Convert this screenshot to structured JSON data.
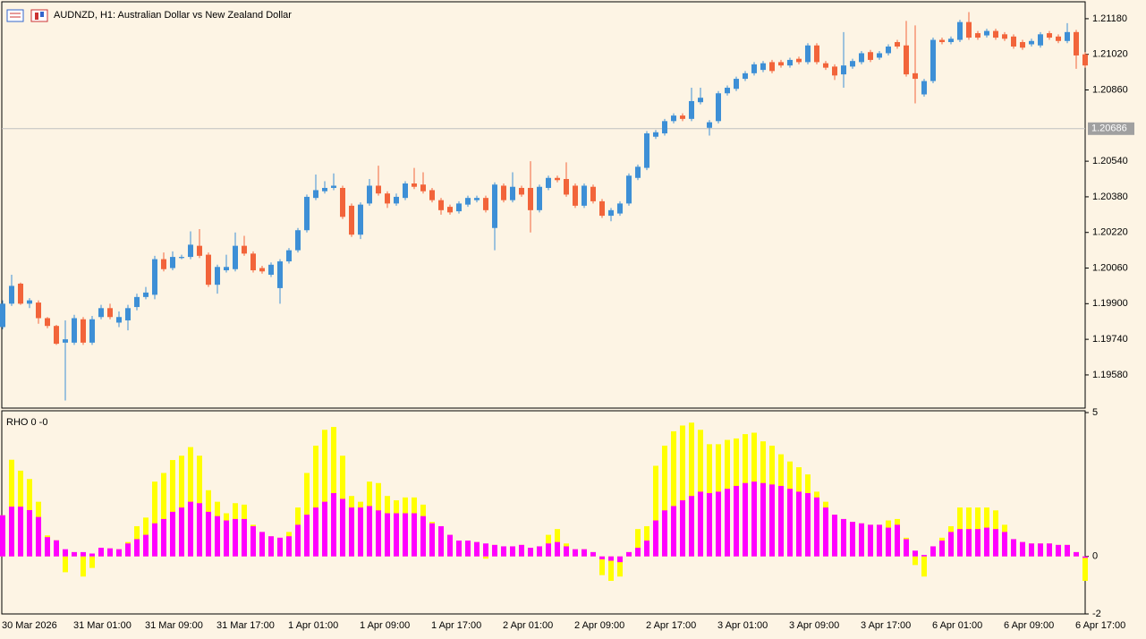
{
  "chart_data": [
    {
      "type": "candlestick",
      "title": "AUDNZD, H1:  Australian Dollar vs New Zealand Dollar",
      "up_color": "#3d8fd6",
      "down_color": "#f2643a",
      "categories": [
        "30 Mar 2026",
        null,
        null,
        null,
        null,
        null,
        null,
        null,
        "31 Mar 01:00",
        null,
        null,
        null,
        null,
        null,
        null,
        null,
        "31 Mar 09:00",
        null,
        null,
        null,
        null,
        null,
        null,
        null,
        "31 Mar 17:00",
        null,
        null,
        null,
        null,
        null,
        null,
        null,
        "1 Apr 01:00",
        null,
        null,
        null,
        null,
        null,
        null,
        null,
        "1 Apr 09:00",
        null,
        null,
        null,
        null,
        null,
        null,
        null,
        "1 Apr 17:00",
        null,
        null,
        null,
        null,
        null,
        null,
        null,
        "2 Apr 01:00",
        null,
        null,
        null,
        null,
        null,
        null,
        null,
        "2 Apr 09:00",
        null,
        null,
        null,
        null,
        null,
        null,
        null,
        "2 Apr 17:00",
        null,
        null,
        null,
        null,
        null,
        null,
        null,
        "3 Apr 01:00",
        null,
        null,
        null,
        null,
        null,
        null,
        null,
        "3 Apr 09:00",
        null,
        null,
        null,
        null,
        null,
        null,
        null,
        "3 Apr 17:00",
        null,
        null,
        null,
        null,
        null,
        null,
        null,
        "6 Apr 01:00",
        null,
        null,
        null,
        null,
        null,
        null,
        null,
        "6 Apr 09:00",
        null,
        null,
        null,
        null,
        null,
        null,
        null,
        "6 Apr 17:00",
        null
      ],
      "open": [
        1.19795,
        1.199,
        1.1999,
        1.199,
        1.19905,
        1.19835,
        1.198,
        1.19725,
        1.19725,
        1.1983,
        1.19725,
        1.1984,
        1.1988,
        1.19815,
        1.19825,
        1.19885,
        1.1993,
        1.1994,
        1.201,
        1.2006,
        1.20105,
        1.2011,
        1.2016,
        1.2012,
        1.19985,
        1.2005,
        1.20055,
        1.2016,
        1.20125,
        1.2006,
        1.2003,
        1.1997,
        1.2009,
        1.2014,
        1.2023,
        1.20375,
        1.20405,
        1.2042,
        1.2042,
        1.2034,
        1.2021,
        1.2035,
        1.2043,
        1.20395,
        1.2035,
        1.20375,
        1.2044,
        1.20435,
        1.2041,
        1.20365,
        1.20335,
        1.20315,
        1.20345,
        1.20365,
        1.20375,
        1.2024,
        1.2043,
        1.20365,
        1.2042,
        1.2042,
        1.2032,
        1.2042,
        1.20465,
        1.2046,
        1.2043,
        1.2034,
        1.20425,
        1.2036,
        1.20295,
        1.20305,
        1.2035,
        1.20465,
        1.2051,
        1.2065,
        1.20665,
        1.2072,
        1.20745,
        1.2073,
        1.20805,
        1.2069,
        1.2072,
        1.20845,
        1.20865,
        1.2091,
        1.20935,
        1.2095,
        1.20985,
        1.20985,
        1.2097,
        1.21,
        1.20985,
        1.2106,
        1.2098,
        1.20965,
        1.2093,
        1.20965,
        1.20985,
        1.2103,
        1.21005,
        1.21025,
        1.21075,
        1.2106,
        1.20935,
        1.2084,
        1.209,
        1.21085,
        1.21075,
        1.21085,
        1.21165,
        1.21115,
        1.21105,
        1.21125,
        1.2111,
        1.211,
        1.21075,
        1.21065,
        1.2106,
        1.21115,
        1.211,
        1.2108,
        1.2112,
        1.2102
      ],
      "high": [
        1.19915,
        1.2003,
        1.19995,
        1.19925,
        1.19915,
        1.1984,
        1.19805,
        1.19825,
        1.1985,
        1.1984,
        1.19845,
        1.19895,
        1.199,
        1.19865,
        1.19895,
        1.19945,
        1.19975,
        1.20115,
        1.2013,
        1.20135,
        1.2012,
        1.20225,
        1.20235,
        1.2013,
        1.20075,
        1.2012,
        1.2022,
        1.20205,
        1.20135,
        1.2007,
        1.20085,
        1.201,
        1.2015,
        1.2024,
        1.2039,
        1.2048,
        1.2045,
        1.20485,
        1.2043,
        1.2035,
        1.20355,
        1.2046,
        1.2052,
        1.20405,
        1.20395,
        1.2045,
        1.2051,
        1.2049,
        1.2042,
        1.20375,
        1.20345,
        1.2036,
        1.20385,
        1.20385,
        1.20385,
        1.20445,
        1.2044,
        1.2049,
        1.2043,
        1.2054,
        1.20435,
        1.20475,
        1.20475,
        1.20535,
        1.2044,
        1.2044,
        1.20435,
        1.2037,
        1.2033,
        1.2036,
        1.20485,
        1.20525,
        1.20675,
        1.2068,
        1.2073,
        1.20755,
        1.20755,
        1.2087,
        1.2087,
        1.20725,
        1.20855,
        1.2088,
        1.2092,
        1.20945,
        1.20985,
        1.2099,
        1.20995,
        1.20995,
        1.21005,
        1.2101,
        1.2107,
        1.2107,
        1.2099,
        1.20975,
        1.2112,
        1.21,
        1.21035,
        1.2104,
        1.21035,
        1.21065,
        1.21085,
        1.2117,
        1.2115,
        1.2091,
        1.21095,
        1.21095,
        1.211,
        1.21175,
        1.2121,
        1.21125,
        1.21135,
        1.21135,
        1.2112,
        1.2111,
        1.21085,
        1.2109,
        1.2112,
        1.21125,
        1.2111,
        1.2116,
        1.2113,
        1.2103
      ],
      "low": [
        1.19785,
        1.1989,
        1.19895,
        1.1988,
        1.1981,
        1.1979,
        1.19715,
        1.19465,
        1.19715,
        1.19715,
        1.19715,
        1.1983,
        1.1983,
        1.19795,
        1.1978,
        1.1987,
        1.1992,
        1.1992,
        1.20045,
        1.2005,
        1.201,
        1.201,
        1.20105,
        1.19975,
        1.19945,
        1.2004,
        1.20045,
        1.20115,
        1.2004,
        1.20035,
        1.2002,
        1.199,
        1.2008,
        1.2013,
        1.2022,
        1.20365,
        1.20395,
        1.2041,
        1.2028,
        1.202,
        1.2019,
        1.2034,
        1.20385,
        1.2033,
        1.2034,
        1.20365,
        1.20415,
        1.20395,
        1.20355,
        1.203,
        1.203,
        1.20305,
        1.20335,
        1.20355,
        1.2031,
        1.2014,
        1.20355,
        1.20355,
        1.2038,
        1.2022,
        1.2031,
        1.2041,
        1.20445,
        1.2038,
        1.2033,
        1.2033,
        1.2035,
        1.20285,
        1.2027,
        1.20295,
        1.2034,
        1.20455,
        1.205,
        1.2064,
        1.20655,
        1.2071,
        1.2072,
        1.2072,
        1.20795,
        1.20655,
        1.2071,
        1.20835,
        1.20855,
        1.209,
        1.20925,
        1.2094,
        1.20935,
        1.2096,
        1.2096,
        1.20975,
        1.20975,
        1.20975,
        1.2095,
        1.20905,
        1.2087,
        1.20955,
        1.20975,
        1.20985,
        1.20995,
        1.21015,
        1.21045,
        1.2092,
        1.208,
        1.2083,
        1.2089,
        1.21065,
        1.21065,
        1.21075,
        1.21085,
        1.21085,
        1.21095,
        1.21085,
        1.2108,
        1.21045,
        1.2104,
        1.21055,
        1.2105,
        1.21085,
        1.2107,
        1.2107,
        1.20955,
        1.2096
      ],
      "close": [
        1.199,
        1.1998,
        1.199,
        1.19915,
        1.19835,
        1.198,
        1.1972,
        1.1974,
        1.19835,
        1.19725,
        1.1983,
        1.1988,
        1.1984,
        1.1984,
        1.1988,
        1.1993,
        1.1995,
        1.201,
        1.20055,
        1.2011,
        1.2011,
        1.20165,
        1.20115,
        1.19985,
        1.20065,
        1.20065,
        1.2016,
        1.20125,
        1.2005,
        1.20045,
        1.20075,
        1.2009,
        1.2014,
        1.2023,
        1.2038,
        1.2041,
        1.2042,
        1.2043,
        1.2029,
        1.2021,
        1.20345,
        1.2043,
        1.20395,
        1.2035,
        1.2038,
        1.2044,
        1.20425,
        1.20405,
        1.20365,
        1.2032,
        1.2031,
        1.2035,
        1.20375,
        1.20375,
        1.2032,
        1.20435,
        1.20365,
        1.20425,
        1.2039,
        1.2032,
        1.20425,
        1.20465,
        1.20455,
        1.2039,
        1.2034,
        1.2043,
        1.2036,
        1.20295,
        1.2032,
        1.2035,
        1.20475,
        1.20515,
        1.20665,
        1.2067,
        1.2072,
        1.20745,
        1.2073,
        1.2081,
        1.20825,
        1.20715,
        1.20845,
        1.2087,
        1.2091,
        1.20935,
        1.20975,
        1.2098,
        1.20945,
        1.2097,
        1.20995,
        1.20985,
        1.2106,
        1.20985,
        1.2096,
        1.20925,
        1.2097,
        1.2099,
        1.21025,
        1.20995,
        1.21025,
        1.21055,
        1.21055,
        1.2093,
        1.2091,
        1.209,
        1.21085,
        1.21075,
        1.2109,
        1.21165,
        1.21095,
        1.21095,
        1.21125,
        1.21095,
        1.2109,
        1.21055,
        1.2105,
        1.2108,
        1.2111,
        1.21095,
        1.2108,
        1.2112,
        1.21015,
        1.2097
      ],
      "price_line": 1.20686,
      "ylim": [
        1.19431,
        1.21256
      ],
      "yticks": [
        {
          "value": 1.2118,
          "label": "1.21180"
        },
        {
          "value": 1.2102,
          "label": "1.21020"
        },
        {
          "value": 1.2086,
          "label": "1.20860"
        },
        {
          "value": 1.2054,
          "label": "1.20540"
        },
        {
          "value": 1.2038,
          "label": "1.20380"
        },
        {
          "value": 1.2022,
          "label": "1.20220"
        },
        {
          "value": 1.2006,
          "label": "1.20060"
        },
        {
          "value": 1.199,
          "label": "1.19900"
        },
        {
          "value": 1.1974,
          "label": "1.19740"
        },
        {
          "value": 1.1958,
          "label": "1.19580"
        }
      ]
    },
    {
      "type": "bar",
      "title": "RHO 0 -0",
      "series": [
        {
          "color": "#ffff00",
          "values": [
            1.43,
            3.36,
            2.98,
            2.69,
            1.9,
            0.73,
            0.56,
            -0.55,
            0.15,
            -0.7,
            -0.4,
            0.3,
            0.28,
            0.25,
            0.5,
            1.05,
            1.35,
            2.6,
            2.9,
            3.35,
            3.5,
            3.8,
            3.5,
            2.3,
            1.9,
            1.5,
            1.85,
            1.8,
            1.1,
            0.85,
            0.7,
            0.65,
            0.85,
            1.7,
            2.9,
            3.85,
            4.4,
            4.5,
            3.5,
            2.1,
            1.9,
            2.6,
            2.55,
            2.1,
            1.95,
            2.05,
            2.05,
            1.8,
            1.2,
            1.05,
            0.75,
            0.55,
            0.55,
            0.5,
            -0.08,
            0.4,
            0.35,
            0.35,
            0.4,
            0.3,
            0.35,
            0.75,
            0.95,
            0.45,
            0.25,
            0.25,
            0.15,
            -0.65,
            -0.85,
            -0.7,
            0.15,
            0.95,
            1.05,
            3.15,
            3.85,
            4.35,
            4.55,
            4.65,
            4.4,
            3.9,
            3.9,
            4.05,
            4.1,
            4.25,
            4.3,
            4.0,
            3.85,
            3.55,
            3.3,
            3.1,
            2.85,
            2.25,
            1.9,
            1.45,
            1.3,
            1.2,
            1.15,
            1.1,
            1.1,
            1.25,
            1.3,
            0.65,
            -0.3,
            -0.7,
            0.35,
            0.65,
            1.05,
            1.7,
            1.7,
            1.7,
            1.7,
            1.6,
            1.1,
            0.6,
            0.5,
            0.45,
            0.45,
            0.45,
            0.4,
            0.4,
            0.15,
            -0.85
          ]
        },
        {
          "color": "#ff00ff",
          "values": [
            1.43,
            1.73,
            1.73,
            1.61,
            1.37,
            0.67,
            0.56,
            0.25,
            0.15,
            0.15,
            0.1,
            0.3,
            0.28,
            0.25,
            0.45,
            0.6,
            0.75,
            1.15,
            1.3,
            1.55,
            1.7,
            1.9,
            1.85,
            1.55,
            1.4,
            1.25,
            1.3,
            1.3,
            1.05,
            0.85,
            0.7,
            0.65,
            0.7,
            1.1,
            1.45,
            1.7,
            1.9,
            2.2,
            2.0,
            1.7,
            1.7,
            1.75,
            1.6,
            1.5,
            1.5,
            1.5,
            1.5,
            1.4,
            1.15,
            1.05,
            0.75,
            0.55,
            0.55,
            0.5,
            0.45,
            0.4,
            0.35,
            0.35,
            0.4,
            0.3,
            0.35,
            0.45,
            0.5,
            0.35,
            0.25,
            0.25,
            0.15,
            -0.1,
            -0.15,
            -0.2,
            0.15,
            0.3,
            0.55,
            1.25,
            1.6,
            1.75,
            1.95,
            2.1,
            2.25,
            2.2,
            2.25,
            2.35,
            2.45,
            2.55,
            2.6,
            2.55,
            2.5,
            2.45,
            2.35,
            2.25,
            2.2,
            2.05,
            1.7,
            1.45,
            1.3,
            1.2,
            1.15,
            1.1,
            1.1,
            1.0,
            1.1,
            0.6,
            0.2,
            0.05,
            0.35,
            0.55,
            0.85,
            0.95,
            0.95,
            0.95,
            1.0,
            0.95,
            0.85,
            0.6,
            0.5,
            0.45,
            0.45,
            0.45,
            0.4,
            0.4,
            0.15,
            -0.05
          ]
        }
      ],
      "ylim": [
        -2,
        5
      ],
      "yticks": [
        5,
        0,
        -2
      ]
    }
  ]
}
